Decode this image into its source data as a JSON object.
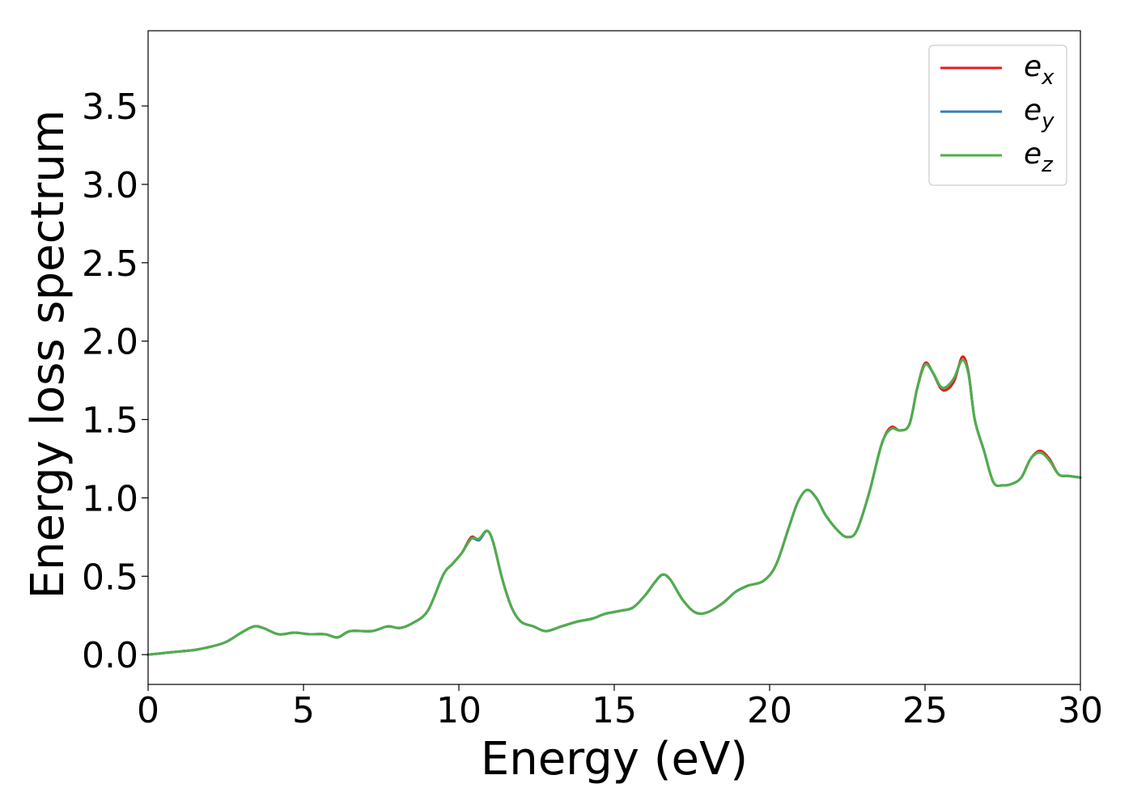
{
  "chart_data": {
    "type": "line",
    "xlabel": "Energy (eV)",
    "ylabel": "Energy loss spectrum",
    "xlim": [
      0,
      30
    ],
    "ylim": [
      -0.19,
      3.98
    ],
    "x_ticks": [
      0,
      5,
      10,
      15,
      20,
      25,
      30
    ],
    "x_tick_labels": [
      "0",
      "5",
      "10",
      "15",
      "20",
      "25",
      "30"
    ],
    "y_ticks": [
      0.0,
      0.5,
      1.0,
      1.5,
      2.0,
      2.5,
      3.0,
      3.5
    ],
    "y_tick_labels": [
      "0.0",
      "0.5",
      "1.0",
      "1.5",
      "2.0",
      "2.5",
      "3.0",
      "3.5"
    ],
    "grid": false,
    "legend_position": "top-right",
    "series": [
      {
        "name": "e_x",
        "label_base": "e",
        "label_sub": "x",
        "color": "#e41a1c",
        "points": [
          [
            0,
            0.0
          ],
          [
            0.5,
            0.01
          ],
          [
            1,
            0.02
          ],
          [
            1.5,
            0.03
          ],
          [
            2,
            0.05
          ],
          [
            2.5,
            0.08
          ],
          [
            3,
            0.14
          ],
          [
            3.4,
            0.18
          ],
          [
            3.7,
            0.17
          ],
          [
            4.2,
            0.13
          ],
          [
            4.7,
            0.14
          ],
          [
            5.2,
            0.13
          ],
          [
            5.7,
            0.13
          ],
          [
            6.1,
            0.11
          ],
          [
            6.5,
            0.15
          ],
          [
            7.2,
            0.15
          ],
          [
            7.7,
            0.18
          ],
          [
            8.1,
            0.17
          ],
          [
            8.5,
            0.2
          ],
          [
            9,
            0.28
          ],
          [
            9.5,
            0.51
          ],
          [
            9.8,
            0.58
          ],
          [
            10.1,
            0.65
          ],
          [
            10.4,
            0.75
          ],
          [
            10.65,
            0.73
          ],
          [
            10.9,
            0.79
          ],
          [
            11.1,
            0.72
          ],
          [
            11.4,
            0.48
          ],
          [
            11.7,
            0.3
          ],
          [
            12,
            0.21
          ],
          [
            12.4,
            0.18
          ],
          [
            12.8,
            0.15
          ],
          [
            13.3,
            0.18
          ],
          [
            13.8,
            0.21
          ],
          [
            14.3,
            0.23
          ],
          [
            14.7,
            0.26
          ],
          [
            15.2,
            0.28
          ],
          [
            15.6,
            0.3
          ],
          [
            16,
            0.38
          ],
          [
            16.3,
            0.46
          ],
          [
            16.55,
            0.51
          ],
          [
            16.8,
            0.48
          ],
          [
            17.2,
            0.35
          ],
          [
            17.6,
            0.27
          ],
          [
            18,
            0.27
          ],
          [
            18.5,
            0.33
          ],
          [
            18.9,
            0.4
          ],
          [
            19.3,
            0.44
          ],
          [
            19.8,
            0.47
          ],
          [
            20.2,
            0.57
          ],
          [
            20.6,
            0.8
          ],
          [
            20.9,
            0.97
          ],
          [
            21.2,
            1.05
          ],
          [
            21.5,
            1.0
          ],
          [
            21.8,
            0.89
          ],
          [
            22.2,
            0.79
          ],
          [
            22.5,
            0.75
          ],
          [
            22.8,
            0.79
          ],
          [
            23.2,
            1.03
          ],
          [
            23.6,
            1.34
          ],
          [
            23.9,
            1.45
          ],
          [
            24.2,
            1.43
          ],
          [
            24.5,
            1.47
          ],
          [
            24.75,
            1.7
          ],
          [
            25,
            1.86
          ],
          [
            25.25,
            1.8
          ],
          [
            25.5,
            1.7
          ],
          [
            25.7,
            1.69
          ],
          [
            25.95,
            1.75
          ],
          [
            26.2,
            1.9
          ],
          [
            26.4,
            1.8
          ],
          [
            26.6,
            1.5
          ],
          [
            26.9,
            1.3
          ],
          [
            27.2,
            1.1
          ],
          [
            27.5,
            1.08
          ],
          [
            27.8,
            1.09
          ],
          [
            28.1,
            1.13
          ],
          [
            28.4,
            1.25
          ],
          [
            28.7,
            1.3
          ],
          [
            29,
            1.25
          ],
          [
            29.3,
            1.15
          ],
          [
            29.6,
            1.14
          ],
          [
            30,
            1.13
          ]
        ]
      },
      {
        "name": "e_y",
        "label_base": "e",
        "label_sub": "y",
        "color": "#377eb8",
        "points": [
          [
            0,
            0.0
          ],
          [
            0.5,
            0.01
          ],
          [
            1,
            0.02
          ],
          [
            1.5,
            0.03
          ],
          [
            2,
            0.05
          ],
          [
            2.5,
            0.08
          ],
          [
            3,
            0.14
          ],
          [
            3.4,
            0.18
          ],
          [
            3.7,
            0.17
          ],
          [
            4.2,
            0.13
          ],
          [
            4.7,
            0.14
          ],
          [
            5.2,
            0.13
          ],
          [
            5.7,
            0.13
          ],
          [
            6.1,
            0.11
          ],
          [
            6.5,
            0.15
          ],
          [
            7.2,
            0.15
          ],
          [
            7.7,
            0.18
          ],
          [
            8.1,
            0.17
          ],
          [
            8.5,
            0.2
          ],
          [
            9,
            0.28
          ],
          [
            9.5,
            0.51
          ],
          [
            9.8,
            0.58
          ],
          [
            10.1,
            0.65
          ],
          [
            10.4,
            0.74
          ],
          [
            10.65,
            0.73
          ],
          [
            10.9,
            0.79
          ],
          [
            11.1,
            0.72
          ],
          [
            11.4,
            0.48
          ],
          [
            11.7,
            0.3
          ],
          [
            12,
            0.21
          ],
          [
            12.4,
            0.18
          ],
          [
            12.8,
            0.15
          ],
          [
            13.3,
            0.18
          ],
          [
            13.8,
            0.21
          ],
          [
            14.3,
            0.23
          ],
          [
            14.7,
            0.26
          ],
          [
            15.2,
            0.28
          ],
          [
            15.6,
            0.3
          ],
          [
            16,
            0.38
          ],
          [
            16.3,
            0.46
          ],
          [
            16.55,
            0.51
          ],
          [
            16.8,
            0.48
          ],
          [
            17.2,
            0.35
          ],
          [
            17.6,
            0.27
          ],
          [
            18,
            0.27
          ],
          [
            18.5,
            0.33
          ],
          [
            18.9,
            0.4
          ],
          [
            19.3,
            0.44
          ],
          [
            19.8,
            0.47
          ],
          [
            20.2,
            0.57
          ],
          [
            20.6,
            0.8
          ],
          [
            20.9,
            0.97
          ],
          [
            21.2,
            1.05
          ],
          [
            21.5,
            1.0
          ],
          [
            21.8,
            0.89
          ],
          [
            22.2,
            0.79
          ],
          [
            22.5,
            0.75
          ],
          [
            22.8,
            0.79
          ],
          [
            23.2,
            1.03
          ],
          [
            23.6,
            1.34
          ],
          [
            23.9,
            1.44
          ],
          [
            24.2,
            1.43
          ],
          [
            24.5,
            1.47
          ],
          [
            24.75,
            1.7
          ],
          [
            25,
            1.85
          ],
          [
            25.25,
            1.8
          ],
          [
            25.5,
            1.71
          ],
          [
            25.7,
            1.71
          ],
          [
            25.95,
            1.77
          ],
          [
            26.2,
            1.88
          ],
          [
            26.4,
            1.79
          ],
          [
            26.6,
            1.5
          ],
          [
            26.9,
            1.3
          ],
          [
            27.2,
            1.1
          ],
          [
            27.5,
            1.08
          ],
          [
            27.8,
            1.09
          ],
          [
            28.1,
            1.13
          ],
          [
            28.4,
            1.25
          ],
          [
            28.7,
            1.29
          ],
          [
            29,
            1.24
          ],
          [
            29.3,
            1.15
          ],
          [
            29.6,
            1.14
          ],
          [
            30,
            1.13
          ]
        ]
      },
      {
        "name": "e_z",
        "label_base": "e",
        "label_sub": "z",
        "color": "#4daf4a",
        "points": [
          [
            0,
            0.0
          ],
          [
            0.5,
            0.01
          ],
          [
            1,
            0.02
          ],
          [
            1.5,
            0.03
          ],
          [
            2,
            0.05
          ],
          [
            2.5,
            0.08
          ],
          [
            3,
            0.14
          ],
          [
            3.4,
            0.18
          ],
          [
            3.7,
            0.17
          ],
          [
            4.2,
            0.13
          ],
          [
            4.7,
            0.14
          ],
          [
            5.2,
            0.13
          ],
          [
            5.7,
            0.13
          ],
          [
            6.1,
            0.11
          ],
          [
            6.5,
            0.15
          ],
          [
            7.2,
            0.15
          ],
          [
            7.7,
            0.18
          ],
          [
            8.1,
            0.17
          ],
          [
            8.5,
            0.2
          ],
          [
            9,
            0.28
          ],
          [
            9.5,
            0.51
          ],
          [
            9.8,
            0.58
          ],
          [
            10.1,
            0.65
          ],
          [
            10.4,
            0.74
          ],
          [
            10.65,
            0.74
          ],
          [
            10.9,
            0.79
          ],
          [
            11.1,
            0.72
          ],
          [
            11.4,
            0.48
          ],
          [
            11.7,
            0.3
          ],
          [
            12,
            0.21
          ],
          [
            12.4,
            0.18
          ],
          [
            12.8,
            0.15
          ],
          [
            13.3,
            0.18
          ],
          [
            13.8,
            0.21
          ],
          [
            14.3,
            0.23
          ],
          [
            14.7,
            0.26
          ],
          [
            15.2,
            0.28
          ],
          [
            15.6,
            0.3
          ],
          [
            16,
            0.38
          ],
          [
            16.3,
            0.46
          ],
          [
            16.55,
            0.51
          ],
          [
            16.8,
            0.48
          ],
          [
            17.2,
            0.35
          ],
          [
            17.6,
            0.27
          ],
          [
            18,
            0.27
          ],
          [
            18.5,
            0.33
          ],
          [
            18.9,
            0.4
          ],
          [
            19.3,
            0.44
          ],
          [
            19.8,
            0.47
          ],
          [
            20.2,
            0.57
          ],
          [
            20.6,
            0.8
          ],
          [
            20.9,
            0.97
          ],
          [
            21.2,
            1.05
          ],
          [
            21.5,
            1.0
          ],
          [
            21.8,
            0.89
          ],
          [
            22.2,
            0.79
          ],
          [
            22.5,
            0.75
          ],
          [
            22.8,
            0.79
          ],
          [
            23.2,
            1.03
          ],
          [
            23.6,
            1.34
          ],
          [
            23.9,
            1.44
          ],
          [
            24.2,
            1.43
          ],
          [
            24.5,
            1.47
          ],
          [
            24.75,
            1.7
          ],
          [
            25,
            1.85
          ],
          [
            25.25,
            1.8
          ],
          [
            25.5,
            1.71
          ],
          [
            25.7,
            1.71
          ],
          [
            25.95,
            1.77
          ],
          [
            26.2,
            1.88
          ],
          [
            26.4,
            1.79
          ],
          [
            26.6,
            1.5
          ],
          [
            26.9,
            1.3
          ],
          [
            27.2,
            1.1
          ],
          [
            27.5,
            1.08
          ],
          [
            27.8,
            1.09
          ],
          [
            28.1,
            1.13
          ],
          [
            28.4,
            1.25
          ],
          [
            28.7,
            1.29
          ],
          [
            29,
            1.24
          ],
          [
            29.3,
            1.15
          ],
          [
            29.6,
            1.14
          ],
          [
            30,
            1.13
          ]
        ]
      }
    ]
  }
}
